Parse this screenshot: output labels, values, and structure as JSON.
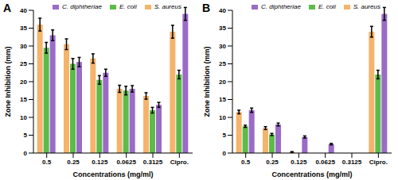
{
  "chart_data": [
    {
      "type": "bar",
      "title": "A",
      "x_label": "Concentrations (mg/ml)",
      "y_label": "Zone Inhibition (mm)",
      "categories": [
        "0.5",
        "0.25",
        "0.125",
        "0.0625",
        "0.3125",
        "Cipro."
      ],
      "series": [
        {
          "name": "S. aureus",
          "color": "#f5b36b",
          "values": [
            36,
            30.5,
            26.5,
            18,
            16,
            34
          ],
          "errors": [
            1.8,
            1.5,
            1.3,
            1.0,
            0.9,
            1.8
          ]
        },
        {
          "name": "E. coli",
          "color": "#5dbb4a",
          "values": [
            29.5,
            25,
            20.5,
            17.5,
            12,
            22
          ],
          "errors": [
            1.5,
            1.5,
            1.2,
            1.2,
            0.8,
            1.2
          ]
        },
        {
          "name": "C. diphtheriae",
          "color": "#9a6bc7",
          "values": [
            33,
            25.5,
            22.5,
            18,
            13.5,
            39
          ],
          "errors": [
            1.5,
            1.3,
            1.0,
            0.9,
            0.7,
            1.8
          ]
        }
      ],
      "ylim": [
        0,
        40
      ],
      "yticks": [
        0,
        5,
        10,
        15,
        20,
        25,
        30,
        35,
        40
      ],
      "grid": false,
      "legend": "top"
    },
    {
      "type": "bar",
      "title": "B",
      "x_label": "Concentrations (mg/ml)",
      "y_label": "Zone Inhibition (mm)",
      "categories": [
        "0.5",
        "0.25",
        "0.125",
        "0.0625",
        "0.3125",
        "Cipro."
      ],
      "series": [
        {
          "name": "S. aureus",
          "color": "#f5b36b",
          "values": [
            11.5,
            7,
            0.3,
            0,
            0,
            34
          ],
          "errors": [
            0.5,
            0.4,
            0.1,
            0,
            0,
            1.5
          ]
        },
        {
          "name": "E. coli",
          "color": "#5dbb4a",
          "values": [
            7.5,
            5.2,
            0,
            0,
            0,
            22
          ],
          "errors": [
            0.3,
            0.3,
            0,
            0,
            0,
            1.2
          ]
        },
        {
          "name": "C. diphtheriae",
          "color": "#9a6bc7",
          "values": [
            12,
            8,
            4.5,
            2.5,
            0,
            39
          ],
          "errors": [
            0.6,
            0.4,
            0.3,
            0.2,
            0,
            1.8
          ]
        }
      ],
      "ylim": [
        0,
        40
      ],
      "yticks": [
        0,
        5,
        10,
        15,
        20,
        25,
        30,
        35,
        40
      ],
      "grid": false,
      "legend": "top"
    }
  ]
}
